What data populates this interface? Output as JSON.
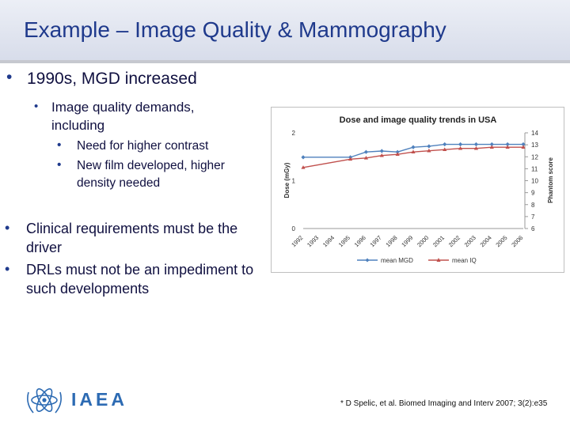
{
  "slide": {
    "title": "Example – Image Quality & Mammography",
    "bullet1": "1990s, MGD increased",
    "bullet1_sub": "Image quality demands, including",
    "bullet1_subsub": [
      "Need for higher contrast",
      "New film developed, higher density needed"
    ],
    "bullet2": "Clinical requirements must be the driver",
    "bullet3": "DRLs must not be an impediment to such developments",
    "reference": "* D Spelic, et al. Biomed Imaging and Interv 2007; 3(2):e35",
    "logo_text": "IAEA",
    "colors": {
      "title": "#1f3a8c",
      "logo": "#2d6bb3"
    }
  },
  "chart_data": {
    "type": "line",
    "title": "Dose and image quality trends in USA",
    "ylabel": "Dose (mGy)",
    "y2label": "Phantom score",
    "ylim": [
      0,
      2
    ],
    "y2lim": [
      6,
      14
    ],
    "yticks": [
      "0",
      "1",
      "2"
    ],
    "y2ticks": [
      "6",
      "7",
      "8",
      "9",
      "10",
      "11",
      "12",
      "13",
      "14"
    ],
    "x": [
      "1992",
      "1993",
      "1994",
      "1995",
      "1996",
      "1997",
      "1998",
      "1999",
      "2000",
      "2001",
      "2002",
      "2003",
      "2004",
      "2005",
      "2006"
    ],
    "series": [
      {
        "name": "mean MGD",
        "axis": "left",
        "color": "#4f81bd",
        "x": [
          "1992",
          "1995",
          "1996",
          "1997",
          "1998",
          "1999",
          "2000",
          "2001",
          "2002",
          "2003",
          "2004",
          "2005",
          "2006"
        ],
        "values": [
          1.49,
          1.49,
          1.6,
          1.62,
          1.6,
          1.7,
          1.72,
          1.76,
          1.76,
          1.76,
          1.76,
          1.76,
          1.76
        ]
      },
      {
        "name": "mean IQ",
        "axis": "right",
        "color": "#c0504d",
        "x": [
          "1992",
          "1995",
          "1996",
          "1997",
          "1998",
          "1999",
          "2000",
          "2001",
          "2002",
          "2003",
          "2004",
          "2005",
          "2006"
        ],
        "values": [
          11.1,
          11.8,
          11.9,
          12.1,
          12.2,
          12.4,
          12.5,
          12.6,
          12.7,
          12.7,
          12.8,
          12.8,
          12.8
        ]
      }
    ],
    "legend": "bottom",
    "grid": false
  }
}
